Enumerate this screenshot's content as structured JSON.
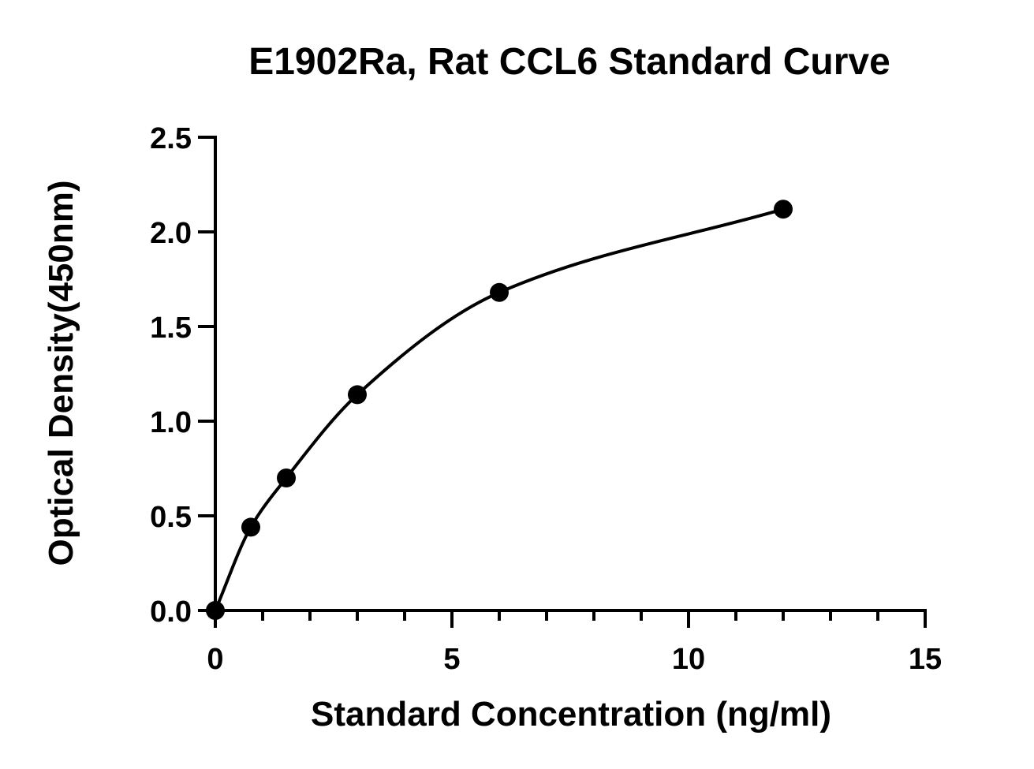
{
  "chart_data": {
    "type": "scatter",
    "title": "E1902Ra, Rat CCL6 Standard Curve",
    "xlabel": "Standard Concentration (ng/ml)",
    "ylabel": "Optical Density(450nm)",
    "xlim": [
      0,
      15
    ],
    "ylim": [
      0,
      2.5
    ],
    "x_ticks": [
      0,
      5,
      10,
      15
    ],
    "x_tick_labels": [
      "0",
      "5",
      "10",
      "15"
    ],
    "x_minor_step": 1,
    "y_ticks": [
      0,
      0.5,
      1.0,
      1.5,
      2.0,
      2.5
    ],
    "y_tick_labels": [
      "0.0",
      "0.5",
      "1.0",
      "1.5",
      "2.0",
      "2.5"
    ],
    "grid": false,
    "legend": "none",
    "series": [
      {
        "x": [
          0,
          0.75,
          1.5,
          3,
          6,
          12
        ],
        "y": [
          0.0,
          0.44,
          0.7,
          1.14,
          1.68,
          2.12
        ]
      }
    ],
    "fit_curve": {
      "type": "smooth",
      "x_range": [
        0,
        12
      ]
    },
    "colors": {
      "marks": "#000000",
      "axes": "#000000"
    }
  }
}
